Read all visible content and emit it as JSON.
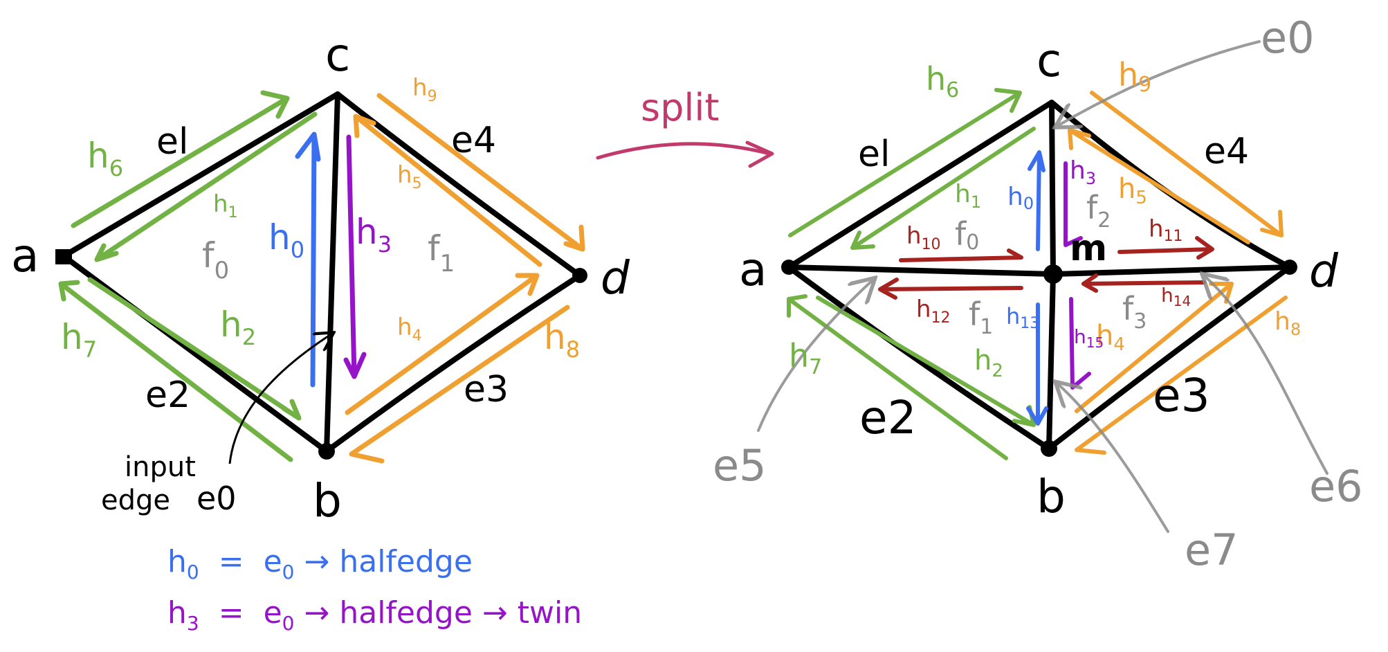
{
  "colors": {
    "green": "#72b244",
    "orange": "#efa031",
    "blue": "#3a6ff0",
    "purple": "#9614c8",
    "red": "#a6221e",
    "gray": "#8a8a8a",
    "black": "#000000",
    "magenta": "#c23a6c"
  },
  "left": {
    "vertices": {
      "a": "a",
      "b": "b",
      "c": "c",
      "d": "d"
    },
    "edges": {
      "e1": "el",
      "e2": "e2",
      "e3": "e3",
      "e4": "e4"
    },
    "faces": {
      "f0": "f",
      "f0_sub": "0",
      "f1": "f",
      "f1_sub": "1"
    },
    "halfedges": {
      "h0": "h",
      "h0_sub": "0",
      "h1": "h",
      "h1_sub": "1",
      "h2": "h",
      "h2_sub": "2",
      "h3": "h",
      "h3_sub": "3",
      "h4": "h",
      "h4_sub": "4",
      "h5": "h",
      "h5_sub": "5",
      "h6": "h",
      "h6_sub": "6",
      "h7": "h",
      "h7_sub": "7",
      "h8": "h",
      "h8_sub": "8",
      "h9": "h",
      "h9_sub": "9"
    },
    "input_label_1": "input",
    "input_label_2": "edge",
    "input_label_3": "e0"
  },
  "split_label": "split",
  "right": {
    "vertices": {
      "a": "a",
      "b": "b",
      "c": "c",
      "d": "d",
      "m": "m"
    },
    "edges": {
      "e0": "e0",
      "e1": "el",
      "e2": "e2",
      "e3": "e3",
      "e4": "e4",
      "e5": "e5",
      "e6": "e6",
      "e7": "e7"
    },
    "faces": {
      "f0": "f",
      "f0_sub": "0",
      "f1": "f",
      "f1_sub": "1",
      "f2": "f",
      "f2_sub": "2",
      "f3": "f",
      "f3_sub": "3"
    },
    "halfedges": {
      "h0": "h",
      "h0_sub": "0",
      "h1": "h",
      "h1_sub": "1",
      "h2": "h",
      "h2_sub": "2",
      "h3": "h",
      "h3_sub": "3",
      "h4": "h",
      "h4_sub": "4",
      "h5": "h",
      "h5_sub": "5",
      "h6": "h",
      "h6_sub": "6",
      "h7": "h",
      "h7_sub": "7",
      "h8": "h",
      "h8_sub": "8",
      "h9": "h",
      "h9_sub": "9",
      "h10": "h",
      "h10_sub": "10",
      "h11": "h",
      "h11_sub": "11",
      "h12": "h",
      "h12_sub": "12",
      "h13": "h",
      "h13_sub": "13",
      "h14": "h",
      "h14_sub": "14",
      "h15": "h",
      "h15_sub": "15"
    }
  },
  "legend": {
    "line1_h": "h",
    "line1_h_sub": "0",
    "line1_eq": "=",
    "line1_e": "e",
    "line1_e_sub": "0",
    "line1_rest": "→ halfedge",
    "line2_h": "h",
    "line2_h_sub": "3",
    "line2_eq": "=",
    "line2_e": "e",
    "line2_e_sub": "0",
    "line2_rest": "→ halfedge → twin"
  }
}
